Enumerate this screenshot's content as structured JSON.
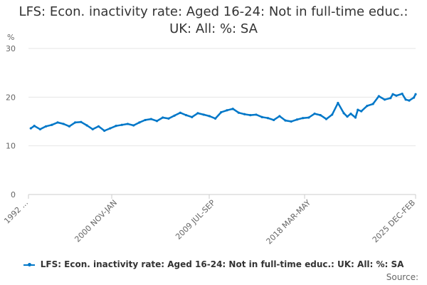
{
  "chart_data": {
    "type": "line",
    "title": "LFS: Econ. inactivity rate: Aged 16-24: Not in full-time educ.: UK: All: %: SA",
    "ylabel": "%",
    "xlabel": "",
    "ylim": [
      0,
      30
    ],
    "yticks": [
      0,
      10,
      20,
      30
    ],
    "xtick_labels": [
      "1992 ...",
      "2000 NOV-JAN",
      "2009 JUL-SEP",
      "2018 MAR-MAY",
      "2025 DEC-FEB"
    ],
    "grid": true,
    "legend_position": "bottom",
    "series": [
      {
        "name": "LFS: Econ. inactivity rate: Aged 16-24: Not in full-time educ.: UK: All: %: SA",
        "color": "#0077c8",
        "x": [
          1992.2,
          1992.5,
          1993.0,
          1993.5,
          1994.0,
          1994.5,
          1995.0,
          1995.5,
          1996.0,
          1996.5,
          1997.0,
          1997.5,
          1998.0,
          1998.5,
          1999.0,
          1999.5,
          2000.0,
          2000.5,
          2001.0,
          2001.5,
          2002.0,
          2002.5,
          2003.0,
          2003.5,
          2004.0,
          2004.5,
          2005.0,
          2005.5,
          2006.0,
          2006.5,
          2007.0,
          2007.5,
          2008.0,
          2008.5,
          2009.0,
          2009.5,
          2010.0,
          2010.5,
          2011.0,
          2011.5,
          2012.0,
          2012.5,
          2013.0,
          2013.5,
          2014.0,
          2014.5,
          2015.0,
          2015.5,
          2016.0,
          2016.5,
          2017.0,
          2017.5,
          2018.0,
          2018.5,
          2019.0,
          2019.3,
          2019.6,
          2020.0,
          2020.2,
          2020.5,
          2021.0,
          2021.5,
          2022.0,
          2022.5,
          2023.0,
          2023.2,
          2023.5,
          2024.0,
          2024.3,
          2024.6,
          2025.0,
          2025.15
        ],
        "values": [
          13.6,
          14.1,
          13.4,
          14.0,
          14.3,
          14.8,
          14.5,
          14.0,
          14.8,
          14.9,
          14.2,
          13.4,
          14.0,
          13.1,
          13.6,
          14.1,
          14.3,
          14.5,
          14.2,
          14.8,
          15.3,
          15.5,
          15.1,
          15.8,
          15.6,
          16.2,
          16.8,
          16.3,
          15.9,
          16.7,
          16.4,
          16.1,
          15.6,
          16.9,
          17.3,
          17.6,
          16.8,
          16.5,
          16.3,
          16.4,
          15.9,
          15.7,
          15.3,
          16.1,
          15.2,
          15.0,
          15.4,
          15.7,
          15.8,
          16.6,
          16.3,
          15.5,
          16.4,
          18.8,
          16.7,
          16.0,
          16.6,
          15.8,
          17.4,
          17.1,
          18.2,
          18.6,
          20.2,
          19.5,
          19.8,
          20.6,
          20.3,
          20.7,
          19.5,
          19.3,
          19.9,
          20.6
        ]
      }
    ]
  },
  "footer": {
    "source_label": "Source:"
  }
}
